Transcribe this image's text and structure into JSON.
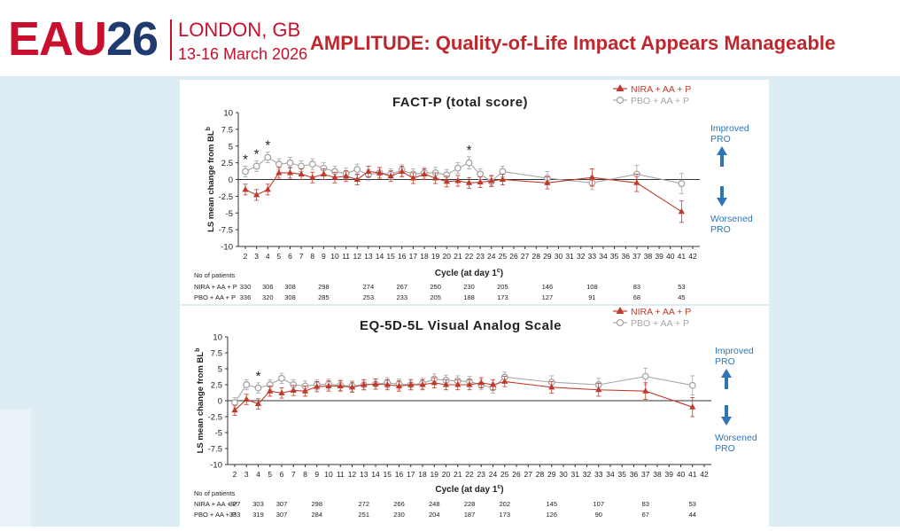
{
  "header": {
    "logo_eau": "EAU",
    "logo_num": "26",
    "location": "LONDON, GB",
    "dates": "13-16 March 2026",
    "headline": "AMPLITUDE: Quality-of-Life Impact Appears Manageable"
  },
  "colors": {
    "nira": "#c0392b",
    "pbo": "#a6a6a6",
    "arrow": "#2e75b6",
    "brand_red": "#c8102e",
    "brand_navy": "#1f3a6e"
  },
  "chart_data": [
    {
      "type": "line",
      "title": "FACT-P (total score)",
      "xlabel": "Cycle (at day 1",
      "xlabel_sup": "c",
      "xlabel_end": ")",
      "ylabel": "LS mean change from BL",
      "ylabel_sup": "b",
      "ylim": [
        -10,
        10
      ],
      "yticks": [
        10,
        7.5,
        5,
        2.5,
        0,
        -2.5,
        -5,
        -7.5,
        -10
      ],
      "xticks": [
        2,
        3,
        4,
        5,
        6,
        7,
        8,
        9,
        10,
        11,
        12,
        13,
        14,
        15,
        16,
        17,
        18,
        19,
        20,
        21,
        22,
        23,
        24,
        25,
        26,
        27,
        28,
        29,
        30,
        31,
        32,
        33,
        34,
        35,
        36,
        37,
        38,
        39,
        40,
        41,
        42
      ],
      "legend": [
        "NIRA + AA + P",
        "PBO + AA + P"
      ],
      "series": [
        {
          "name": "NIRA + AA + P",
          "x": [
            2,
            3,
            4,
            5,
            6,
            7,
            8,
            9,
            10,
            11,
            12,
            13,
            14,
            15,
            16,
            17,
            18,
            19,
            20,
            21,
            22,
            23,
            24,
            25,
            29,
            33,
            37,
            41
          ],
          "y": [
            -1.5,
            -2.3,
            -1.5,
            1.0,
            1.0,
            0.8,
            0.3,
            0.8,
            0.3,
            0.5,
            0.0,
            1.2,
            1.0,
            0.5,
            1.2,
            0.2,
            0.8,
            0.2,
            -0.3,
            -0.2,
            -0.5,
            -0.4,
            -0.2,
            0.0,
            -0.5,
            0.3,
            -0.5,
            -4.8
          ],
          "err": [
            0.8,
            0.8,
            0.8,
            0.8,
            0.8,
            0.8,
            0.8,
            0.8,
            0.8,
            0.8,
            0.8,
            0.8,
            0.8,
            0.8,
            0.8,
            0.8,
            0.8,
            0.8,
            0.8,
            0.8,
            0.8,
            0.8,
            0.8,
            0.8,
            0.9,
            1.3,
            1.3,
            1.6
          ]
        },
        {
          "name": "PBO + AA + P",
          "x": [
            2,
            3,
            4,
            5,
            6,
            7,
            8,
            9,
            10,
            11,
            12,
            13,
            14,
            15,
            16,
            17,
            18,
            19,
            20,
            21,
            22,
            23,
            24,
            25,
            29,
            33,
            37,
            41
          ],
          "y": [
            1.2,
            2.0,
            3.3,
            2.3,
            2.5,
            2.0,
            2.3,
            1.7,
            1.2,
            0.9,
            1.5,
            0.7,
            1.0,
            0.8,
            1.4,
            0.8,
            1.0,
            1.0,
            0.7,
            1.7,
            2.5,
            0.8,
            -0.3,
            1.2,
            0.2,
            -0.5,
            0.8,
            -0.6
          ],
          "err": [
            0.8,
            0.8,
            0.8,
            0.8,
            0.8,
            0.8,
            0.8,
            0.8,
            0.8,
            0.8,
            0.8,
            0.8,
            0.8,
            0.8,
            0.8,
            0.8,
            0.8,
            0.8,
            0.8,
            0.8,
            0.9,
            0.8,
            0.8,
            0.8,
            1.0,
            1.0,
            1.3,
            1.5
          ]
        }
      ],
      "significance_markers": [
        2,
        3,
        4,
        22
      ],
      "significance_symbol": "*",
      "improved_label": [
        "Improved",
        "PRO"
      ],
      "worsened_label": [
        "Worsened",
        "PRO"
      ],
      "patients": {
        "heading": "No of patients",
        "rows": [
          {
            "label": "NIRA + AA + P",
            "values": [
              "330",
              "306",
              "308",
              "298",
              "274",
              "267",
              "250",
              "230",
              "205",
              "146",
              "108",
              "83",
              "53"
            ]
          },
          {
            "label": "PBO + AA + P",
            "values": [
              "336",
              "320",
              "308",
              "285",
              "253",
              "233",
              "205",
              "188",
              "173",
              "127",
              "91",
              "68",
              "45"
            ]
          }
        ],
        "cycles": [
          2,
          4,
          6,
          9,
          13,
          16,
          19,
          22,
          25,
          29,
          33,
          37,
          41
        ]
      }
    },
    {
      "type": "line",
      "title": "EQ-5D-5L Visual Analog Scale",
      "xlabel": "Cycle (at day 1",
      "xlabel_sup": "c",
      "xlabel_end": ")",
      "ylabel": "LS mean change from BL",
      "ylabel_sup": "b",
      "ylim": [
        -10,
        10
      ],
      "yticks": [
        10,
        7.5,
        5,
        2.5,
        0,
        -2.5,
        -5,
        -7.5,
        -10
      ],
      "xticks": [
        2,
        3,
        4,
        5,
        6,
        7,
        8,
        9,
        10,
        11,
        12,
        13,
        14,
        15,
        16,
        17,
        18,
        19,
        20,
        21,
        22,
        23,
        24,
        25,
        26,
        27,
        28,
        29,
        30,
        31,
        32,
        33,
        34,
        35,
        36,
        37,
        38,
        39,
        40,
        41,
        42
      ],
      "legend": [
        "NIRA + AA + P",
        "PBO + AA + P"
      ],
      "series": [
        {
          "name": "NIRA + AA + P",
          "x": [
            2,
            3,
            4,
            5,
            6,
            7,
            8,
            9,
            10,
            11,
            12,
            13,
            14,
            15,
            16,
            17,
            18,
            19,
            20,
            21,
            22,
            23,
            24,
            25,
            29,
            33,
            37,
            41
          ],
          "y": [
            -1.5,
            0.2,
            -0.5,
            1.5,
            1.2,
            1.6,
            1.5,
            2.2,
            2.3,
            2.3,
            2.1,
            2.5,
            2.6,
            2.5,
            2.3,
            2.5,
            2.5,
            2.8,
            2.5,
            2.5,
            2.5,
            2.8,
            2.5,
            3.0,
            2.1,
            1.7,
            1.5,
            -1.0
          ],
          "err": [
            0.8,
            0.8,
            0.8,
            0.8,
            0.8,
            0.8,
            0.8,
            0.8,
            0.8,
            0.8,
            0.8,
            0.8,
            0.8,
            0.8,
            0.8,
            0.8,
            0.8,
            0.8,
            0.8,
            0.8,
            0.8,
            0.8,
            0.8,
            0.8,
            0.9,
            1.0,
            1.3,
            1.5
          ]
        },
        {
          "name": "PBO + AA + P",
          "x": [
            2,
            3,
            4,
            5,
            6,
            7,
            8,
            9,
            10,
            11,
            12,
            13,
            14,
            15,
            16,
            17,
            18,
            19,
            20,
            21,
            22,
            23,
            24,
            25,
            29,
            33,
            37,
            41
          ],
          "y": [
            -0.3,
            2.5,
            2.0,
            2.5,
            3.5,
            2.5,
            2.3,
            2.5,
            2.6,
            2.4,
            2.3,
            2.5,
            2.6,
            2.8,
            2.6,
            2.5,
            2.7,
            3.4,
            3.2,
            3.1,
            3.0,
            2.5,
            2.0,
            3.7,
            2.9,
            2.5,
            3.8,
            2.4
          ],
          "err": [
            0.8,
            0.8,
            0.8,
            0.8,
            0.8,
            0.8,
            0.8,
            0.8,
            0.8,
            0.8,
            0.8,
            0.8,
            0.8,
            0.8,
            0.8,
            0.8,
            0.8,
            0.8,
            0.8,
            0.8,
            0.8,
            0.8,
            0.8,
            0.8,
            1.0,
            1.0,
            1.3,
            1.5
          ]
        }
      ],
      "significance_markers": [
        4
      ],
      "significance_symbol": "*",
      "improved_label": [
        "Improved",
        "PRO"
      ],
      "worsened_label": [
        "Worsened",
        "PRO"
      ],
      "patients": {
        "heading": "No of patients",
        "rows": [
          {
            "label": "NIRA + AA + P",
            "values": [
              "327",
              "303",
              "307",
              "298",
              "272",
              "266",
              "248",
              "228",
              "202",
              "145",
              "107",
              "83",
              "53"
            ]
          },
          {
            "label": "PBO + AA + P",
            "values": [
              "333",
              "319",
              "307",
              "284",
              "251",
              "230",
              "204",
              "187",
              "173",
              "126",
              "90",
              "67",
              "44"
            ]
          }
        ],
        "cycles": [
          2,
          4,
          6,
          9,
          13,
          16,
          19,
          22,
          25,
          29,
          33,
          37,
          41
        ]
      }
    }
  ]
}
